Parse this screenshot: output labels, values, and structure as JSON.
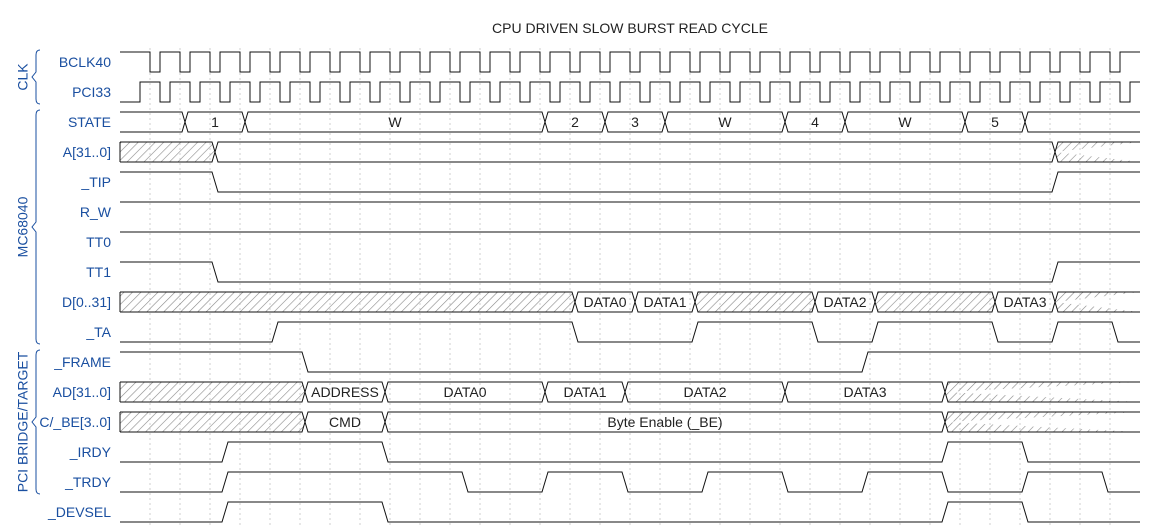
{
  "title": "CPU DRIVEN SLOW BURST READ CYCLE",
  "groups": [
    {
      "name": "CLK",
      "from": 0,
      "to": 1
    },
    {
      "name": "MC68040",
      "from": 2,
      "to": 9
    },
    {
      "name": "PCI BRIDGE/TARGET",
      "from": 10,
      "to": 14
    }
  ],
  "signals": [
    {
      "name": "BCLK40",
      "type": "clock",
      "high": 20,
      "low": 10,
      "start": 120,
      "fall": 150
    },
    {
      "name": "PCI33",
      "type": "clock",
      "period": 40,
      "high": 20,
      "low": 10,
      "start": 120,
      "rise": 140
    },
    {
      "name": "STATE",
      "type": "bus",
      "segments": [
        {
          "start": 120,
          "end": 185,
          "label": ""
        },
        {
          "start": 185,
          "end": 245,
          "label": "1"
        },
        {
          "start": 245,
          "end": 545,
          "label": "W"
        },
        {
          "start": 545,
          "end": 605,
          "label": "2"
        },
        {
          "start": 605,
          "end": 665,
          "label": "3"
        },
        {
          "start": 665,
          "end": 785,
          "label": "W"
        },
        {
          "start": 785,
          "end": 845,
          "label": "4"
        },
        {
          "start": 845,
          "end": 965,
          "label": "W"
        },
        {
          "start": 965,
          "end": 1025,
          "label": "5"
        },
        {
          "start": 1025,
          "end": 1140,
          "label": ""
        }
      ]
    },
    {
      "name": "A[31..0]",
      "type": "bus",
      "segments": [
        {
          "start": 120,
          "end": 215,
          "label": "",
          "hatch": true
        },
        {
          "start": 215,
          "end": 1055,
          "label": ""
        },
        {
          "start": 1055,
          "end": 1140,
          "label": "",
          "hatch": true
        }
      ]
    },
    {
      "name": "_TIP",
      "type": "wave",
      "points": [
        [
          120,
          "high"
        ],
        [
          215,
          "low"
        ],
        [
          1055,
          "high"
        ]
      ]
    },
    {
      "name": "R_W",
      "type": "wave",
      "points": [
        [
          120,
          "high"
        ]
      ]
    },
    {
      "name": "TT0",
      "type": "wave",
      "points": [
        [
          120,
          "high"
        ]
      ]
    },
    {
      "name": "TT1",
      "type": "wave",
      "points": [
        [
          120,
          "high"
        ],
        [
          215,
          "low"
        ],
        [
          1055,
          "high"
        ]
      ]
    },
    {
      "name": "D[0..31]",
      "type": "bus",
      "segments": [
        {
          "start": 120,
          "end": 575,
          "label": "",
          "hatch": true
        },
        {
          "start": 575,
          "end": 635,
          "label": "DATA0"
        },
        {
          "start": 635,
          "end": 695,
          "label": "DATA1"
        },
        {
          "start": 695,
          "end": 815,
          "label": "",
          "hatch": true
        },
        {
          "start": 815,
          "end": 875,
          "label": "DATA2"
        },
        {
          "start": 875,
          "end": 995,
          "label": "",
          "hatch": true
        },
        {
          "start": 995,
          "end": 1055,
          "label": "DATA3"
        },
        {
          "start": 1055,
          "end": 1140,
          "label": "",
          "hatch": true
        }
      ]
    },
    {
      "name": "_TA",
      "type": "wave",
      "points": [
        [
          120,
          "low"
        ],
        [
          275,
          "high"
        ],
        [
          575,
          "low"
        ],
        [
          695,
          "high"
        ],
        [
          815,
          "low"
        ],
        [
          875,
          "high"
        ],
        [
          995,
          "low"
        ],
        [
          1055,
          "high"
        ],
        [
          1115,
          "low"
        ]
      ]
    },
    {
      "name": "_FRAME",
      "type": "wave",
      "points": [
        [
          120,
          "high"
        ],
        [
          305,
          "low"
        ],
        [
          865,
          "high"
        ]
      ]
    },
    {
      "name": "AD[31..0]",
      "type": "bus",
      "segments": [
        {
          "start": 120,
          "end": 305,
          "label": "",
          "hatch": true
        },
        {
          "start": 305,
          "end": 385,
          "label": "ADDRESS"
        },
        {
          "start": 385,
          "end": 545,
          "label": "DATA0"
        },
        {
          "start": 545,
          "end": 625,
          "label": "DATA1"
        },
        {
          "start": 625,
          "end": 785,
          "label": "DATA2"
        },
        {
          "start": 785,
          "end": 945,
          "label": "DATA3"
        },
        {
          "start": 945,
          "end": 1140,
          "label": "",
          "hatch": true
        }
      ]
    },
    {
      "name": "C/_BE[3..0]",
      "type": "bus",
      "segments": [
        {
          "start": 120,
          "end": 305,
          "label": "",
          "hatch": true
        },
        {
          "start": 305,
          "end": 385,
          "label": "CMD"
        },
        {
          "start": 385,
          "end": 945,
          "label": "Byte Enable (_BE)"
        },
        {
          "start": 945,
          "end": 1140,
          "label": "",
          "hatch": true
        }
      ]
    },
    {
      "name": "_IRDY",
      "type": "wave",
      "points": [
        [
          120,
          "low"
        ],
        [
          225,
          "high"
        ],
        [
          385,
          "low"
        ],
        [
          945,
          "high"
        ],
        [
          1025,
          "low"
        ]
      ]
    },
    {
      "name": "_TRDY",
      "type": "wave",
      "points": [
        [
          120,
          "low"
        ],
        [
          225,
          "high"
        ],
        [
          465,
          "low"
        ],
        [
          545,
          "high"
        ],
        [
          625,
          "low"
        ],
        [
          705,
          "high"
        ],
        [
          785,
          "low"
        ],
        [
          865,
          "high"
        ],
        [
          945,
          "low"
        ],
        [
          1025,
          "high"
        ],
        [
          1105,
          "low"
        ]
      ]
    },
    {
      "name": "_DEVSEL",
      "type": "wave",
      "points": [
        [
          120,
          "low"
        ],
        [
          225,
          "high"
        ],
        [
          385,
          "low"
        ],
        [
          945,
          "high"
        ],
        [
          1025,
          "low"
        ]
      ]
    }
  ]
}
